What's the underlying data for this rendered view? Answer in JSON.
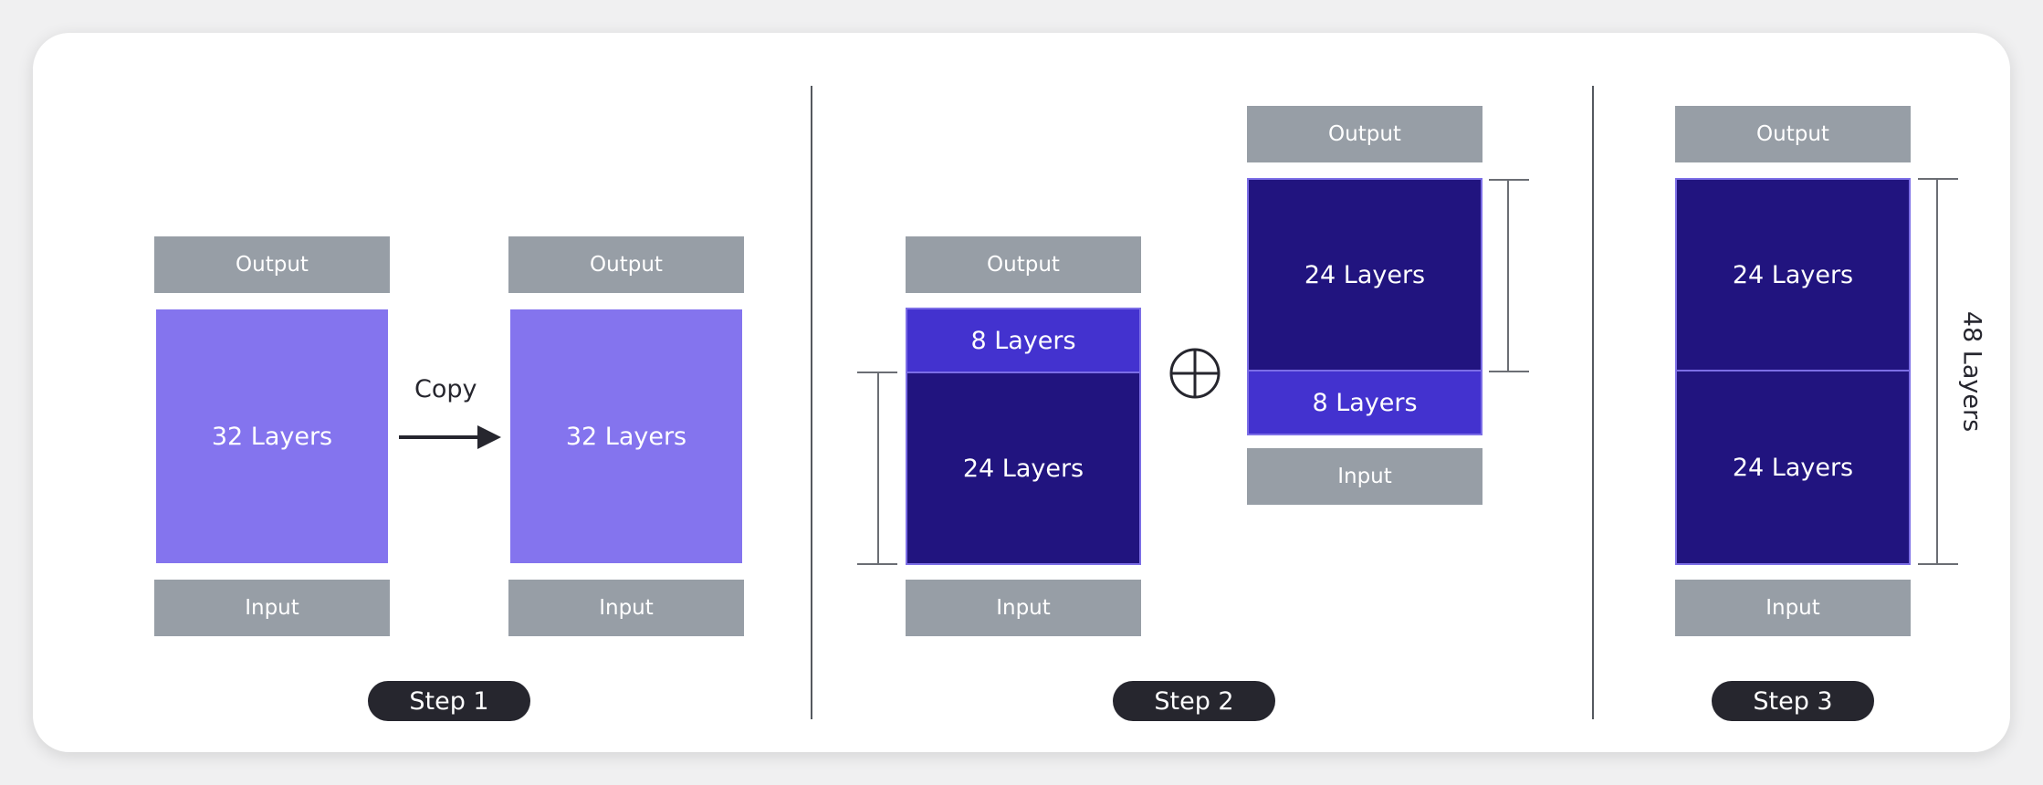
{
  "labels": {
    "output": "Output",
    "input": "Input",
    "layers32": "32 Layers",
    "layers24": "24 Layers",
    "layers8": "8 Layers",
    "layers48": "48 Layers",
    "copy": "Copy",
    "step1": "Step 1",
    "step2": "Step 2",
    "step3": "Step 3"
  },
  "colors": {
    "io_gray": "#979ea6",
    "light_purple": "#8474ee",
    "medium_purple": "#4332cf",
    "dark_navy": "#21147f",
    "pill_dark": "#26262e"
  },
  "icons": [
    "arrow-right-icon",
    "circled-plus-icon"
  ]
}
